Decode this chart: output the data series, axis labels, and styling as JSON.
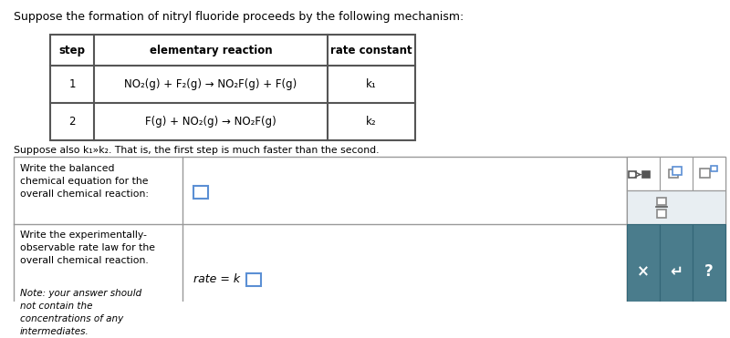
{
  "title": "Suppose the formation of nitryl fluoride proceeds by the following mechanism:",
  "table_headers": [
    "step",
    "elementary reaction",
    "rate constant"
  ],
  "table_rows": [
    [
      "1",
      "NO₂(g) + F₂(g) → NO₂F(g) + F(g)",
      "k₁"
    ],
    [
      "2",
      "F(g) + NO₂(g) → NO₂F(g)",
      "k₂"
    ]
  ],
  "suppose_text": "Suppose also k₁»k₂. That is, the first step is much faster than the second.",
  "answer_row1_label": "Write the balanced\nchemical equation for the\noverall chemical reaction:",
  "answer_row2_label_top": "Write the experimentally-\nobservable rate law for the\noverall chemical reaction.",
  "answer_row2_label_note": "Note: your answer should\nnot contain the\nconcentrations of any\nintermediates.",
  "rate_text": "rate = k ",
  "bg_white": "#ffffff",
  "bg_sidebar_light": "#e8eef2",
  "bg_sidebar_dark": "#4a7c8c",
  "border_dark": "#555555",
  "border_light": "#999999",
  "input_box_color_blue": "#5b8fd4",
  "input_box_color_gray": "#aaaaaa",
  "text_color": "#000000",
  "sidebar_text_color": "#ffffff",
  "title_fontsize": 9.0,
  "table_fontsize": 8.5,
  "body_fontsize": 7.8,
  "rate_fontsize": 9.0,
  "sidebar_fontsize": 10.0
}
